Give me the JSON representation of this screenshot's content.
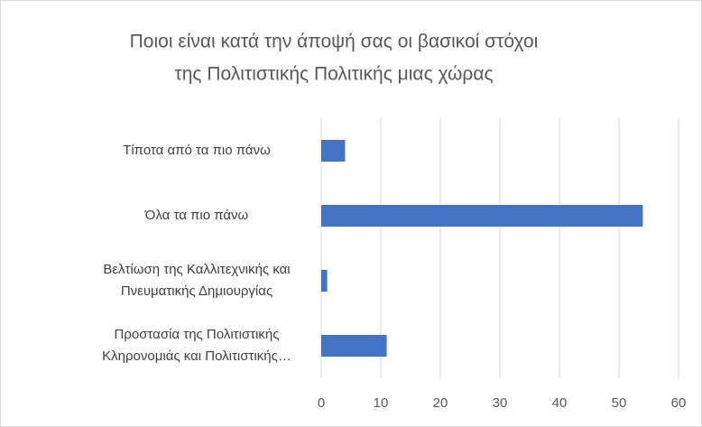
{
  "chart_data": {
    "type": "bar",
    "orientation": "horizontal",
    "title": [
      "Ποιοι είναι κατά την άποψή σας οι βασικοί στόχοι",
      "της Πολιτιστικής Πολιτικής μιας χώρας"
    ],
    "categories": [
      [
        "Τίποτα από τα πιο πάνω"
      ],
      [
        "Όλα τα πιο πάνω"
      ],
      [
        "Βελτίωση της Καλλιτεχνικής και",
        "Πνευματικής Δημιουργίας"
      ],
      [
        "Προστασία της Πολιτιστικής",
        "Κληρονομιάς και Πολιτιστικής…"
      ]
    ],
    "values": [
      4,
      54,
      1,
      11
    ],
    "color": "#4472c4",
    "xlim": [
      0,
      60
    ],
    "xticks": [
      0,
      10,
      20,
      30,
      40,
      50,
      60
    ],
    "grid": true
  }
}
